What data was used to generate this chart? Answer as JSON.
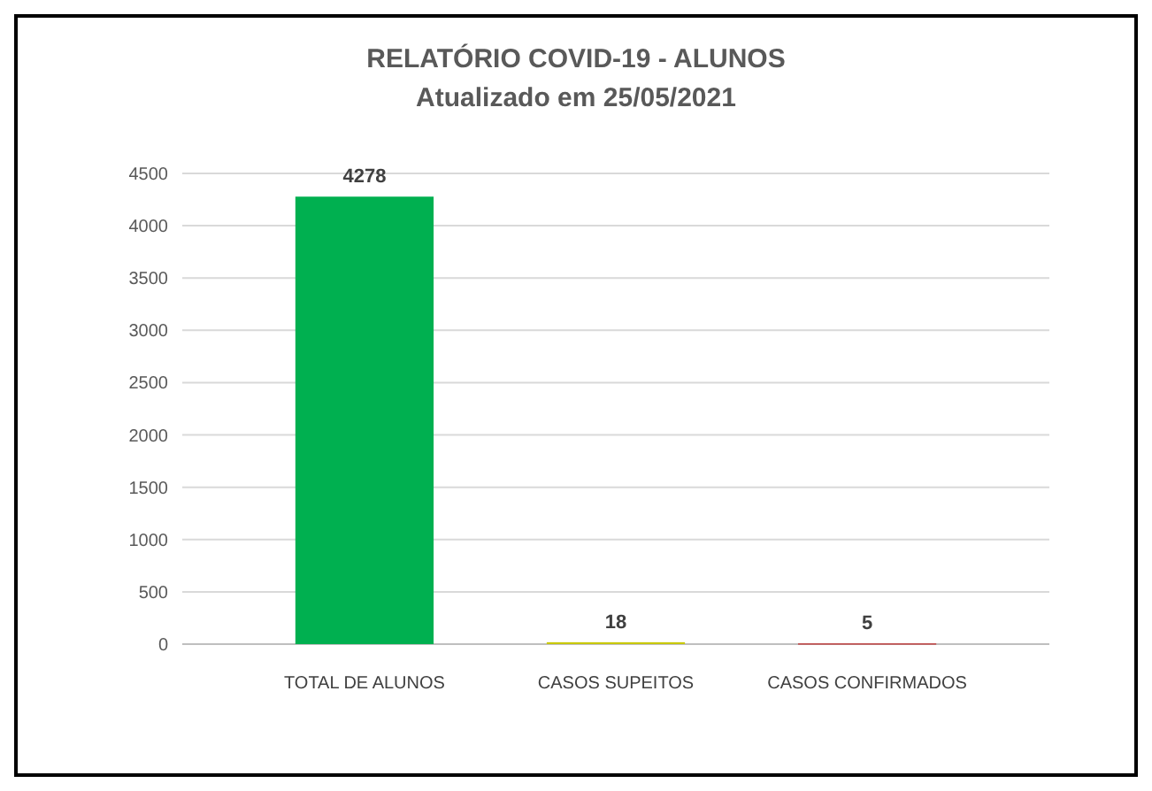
{
  "chart_data": {
    "type": "bar",
    "title": "RELATÓRIO COVID-19 - ALUNOS",
    "subtitle": "Atualizado em 25/05/2021",
    "categories": [
      "TOTAL DE ALUNOS",
      "CASOS SUPEITOS",
      "CASOS CONFIRMADOS"
    ],
    "values": [
      4278,
      18,
      5
    ],
    "colors": [
      "#00b050",
      "#c8c800",
      "#c00000"
    ],
    "ylim": [
      0,
      4500
    ],
    "yticks": [
      0,
      500,
      1000,
      1500,
      2000,
      2500,
      3000,
      3500,
      4000,
      4500
    ],
    "grid": "y",
    "data_labels": true
  }
}
